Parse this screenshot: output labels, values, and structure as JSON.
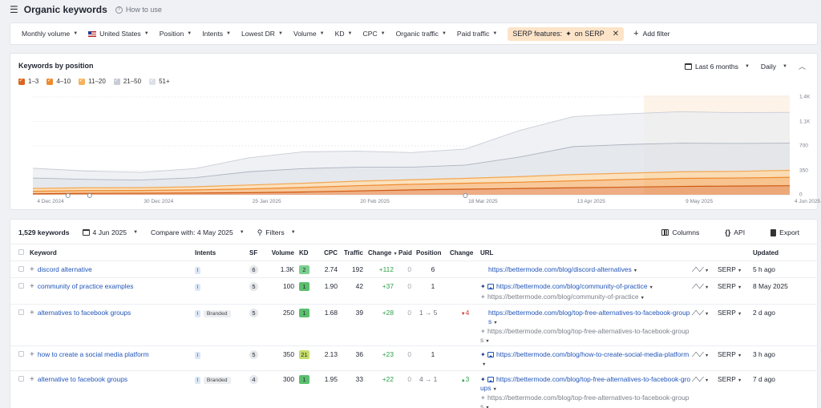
{
  "header": {
    "title": "Organic keywords",
    "how_to": "How to use"
  },
  "filters": [
    {
      "label": "Monthly volume"
    },
    {
      "label": "United States",
      "flag": true
    },
    {
      "label": "Position"
    },
    {
      "label": "Intents"
    },
    {
      "label": "Lowest DR"
    },
    {
      "label": "Volume"
    },
    {
      "label": "KD"
    },
    {
      "label": "CPC"
    },
    {
      "label": "Organic traffic"
    },
    {
      "label": "Paid traffic"
    }
  ],
  "serp_chip": {
    "prefix": "SERP features:",
    "icon": "✦",
    "value": "on SERP"
  },
  "add_filter": "Add filter",
  "chart": {
    "title": "Keywords by position",
    "range": "Last 6 months",
    "interval": "Daily",
    "legend": [
      {
        "label": "1–3",
        "color": "#d9661c",
        "checked": true
      },
      {
        "label": "4–10",
        "color": "#ef8a2c",
        "checked": true
      },
      {
        "label": "11–20",
        "color": "#f6b25c",
        "checked": true
      },
      {
        "label": "21–50",
        "color": "#c7ccd6",
        "checked": true
      },
      {
        "label": "51+",
        "color": "#dde0e7",
        "checked": true
      }
    ],
    "x_ticks": [
      "4 Dec 2024",
      "30 Dec 2024",
      "25 Jan 2025",
      "20 Feb 2025",
      "18 Mar 2025",
      "13 Apr 2025",
      "9 May 2025",
      "4 Jun 2025"
    ],
    "y_ticks": [
      "1.4K",
      "1.1K",
      "700",
      "350",
      "0"
    ]
  },
  "chart_data": {
    "type": "area",
    "stacked": true,
    "x": [
      "4 Dec 2024",
      "15 Dec 2024",
      "30 Dec 2024",
      "10 Jan 2025",
      "25 Jan 2025",
      "5 Feb 2025",
      "20 Feb 2025",
      "5 Mar 2025",
      "18 Mar 2025",
      "29 Mar 2025",
      "13 Apr 2025",
      "25 Apr 2025",
      "9 May 2025",
      "20 May 2025",
      "4 Jun 2025"
    ],
    "ylim": [
      0,
      1400
    ],
    "y_ticks": [
      0,
      350,
      700,
      1050,
      1400
    ],
    "series": [
      {
        "name": "1–3",
        "values": [
          15,
          20,
          22,
          25,
          30,
          40,
          55,
          70,
          80,
          90,
          100,
          110,
          120,
          125,
          130
        ]
      },
      {
        "name": "4–10",
        "values": [
          35,
          40,
          40,
          45,
          55,
          65,
          75,
          80,
          85,
          90,
          100,
          110,
          115,
          115,
          120
        ]
      },
      {
        "name": "11–20",
        "values": [
          40,
          40,
          40,
          45,
          55,
          60,
          65,
          65,
          70,
          80,
          90,
          90,
          95,
          95,
          100
        ]
      },
      {
        "name": "21–50",
        "values": [
          150,
          120,
          110,
          130,
          190,
          210,
          200,
          180,
          190,
          280,
          400,
          410,
          410,
          400,
          390
        ]
      },
      {
        "name": "51+",
        "values": [
          140,
          120,
          110,
          130,
          200,
          240,
          230,
          210,
          230,
          380,
          430,
          440,
          450,
          440,
          440
        ]
      }
    ]
  },
  "table": {
    "count": "1,529 keywords",
    "date": "4 Jun 2025",
    "compare": "Compare with: 4 May 2025",
    "filters": "Filters",
    "columns": "Columns",
    "api": "API",
    "export": "Export",
    "headers": [
      "Keyword",
      "Intents",
      "SF",
      "Volume",
      "KD",
      "CPC",
      "Traffic",
      "Change",
      "Paid",
      "Position",
      "Change",
      "URL",
      "",
      "",
      "Updated"
    ],
    "serp_label": "SERP",
    "rows": [
      {
        "keyword": "discord alternative",
        "intent": "I",
        "branded": "",
        "sf": "6",
        "volume": "1.3K",
        "kd": "2",
        "kd_color": "#7ccf8f",
        "cpc": "2.74",
        "traffic": "192",
        "tchange": "+112",
        "paid": "0",
        "position": "6",
        "pchange": "",
        "pchange_dir": "",
        "urls": [
          {
            "text": "https://bettermode.com/blog/discord-alternatives",
            "ai": false,
            "img": false,
            "old": false
          }
        ],
        "updated": "5 h ago"
      },
      {
        "keyword": "community of practice examples",
        "intent": "I",
        "branded": "",
        "sf": "5",
        "volume": "100",
        "kd": "1",
        "kd_color": "#5cbf6e",
        "cpc": "1.90",
        "traffic": "42",
        "tchange": "+37",
        "paid": "0",
        "position": "1",
        "pchange": "",
        "pchange_dir": "",
        "urls": [
          {
            "text": "https://bettermode.com/blog/community-of-practice",
            "ai": true,
            "img": true,
            "old": false
          },
          {
            "text": "https://bettermode.com/blog/community-of-practice",
            "ai": true,
            "img": false,
            "old": true
          }
        ],
        "updated": "8 May 2025"
      },
      {
        "keyword": "alternatives to facebook groups",
        "intent": "I",
        "branded": "Branded",
        "sf": "5",
        "volume": "250",
        "kd": "1",
        "kd_color": "#5cbf6e",
        "cpc": "1.68",
        "traffic": "39",
        "tchange": "+28",
        "paid": "0",
        "position": "1 → 5",
        "pchange": "4",
        "pchange_dir": "down",
        "urls": [
          {
            "text": "https://bettermode.com/blog/top-free-alternatives-to-facebook-groups",
            "ai": false,
            "img": false,
            "old": false
          },
          {
            "text": "https://bettermode.com/blog/top-free-alternatives-to-facebook-groups",
            "ai": true,
            "img": false,
            "old": true
          }
        ],
        "updated": "2 d ago"
      },
      {
        "keyword": "how to create a social media platform",
        "intent": "I",
        "branded": "",
        "sf": "5",
        "volume": "350",
        "kd": "21",
        "kd_color": "#c6dd6a",
        "cpc": "2.13",
        "traffic": "36",
        "tchange": "+23",
        "paid": "0",
        "position": "1",
        "pchange": "",
        "pchange_dir": "",
        "urls": [
          {
            "text": "https://bettermode.com/blog/how-to-create-social-media-platform",
            "ai": true,
            "img": true,
            "old": false
          }
        ],
        "updated": "3 h ago"
      },
      {
        "keyword": "alternative to facebook groups",
        "intent": "I",
        "branded": "Branded",
        "sf": "4",
        "volume": "300",
        "kd": "1",
        "kd_color": "#5cbf6e",
        "cpc": "1.95",
        "traffic": "33",
        "tchange": "+22",
        "paid": "0",
        "position": "4 → 1",
        "pchange": "3",
        "pchange_dir": "up",
        "urls": [
          {
            "text": "https://bettermode.com/blog/top-free-alternatives-to-facebook-groups",
            "ai": true,
            "img": true,
            "old": false
          },
          {
            "text": "https://bettermode.com/blog/top-free-alternatives-to-facebook-groups",
            "ai": true,
            "img": false,
            "old": true
          }
        ],
        "updated": "7 d ago"
      }
    ]
  }
}
